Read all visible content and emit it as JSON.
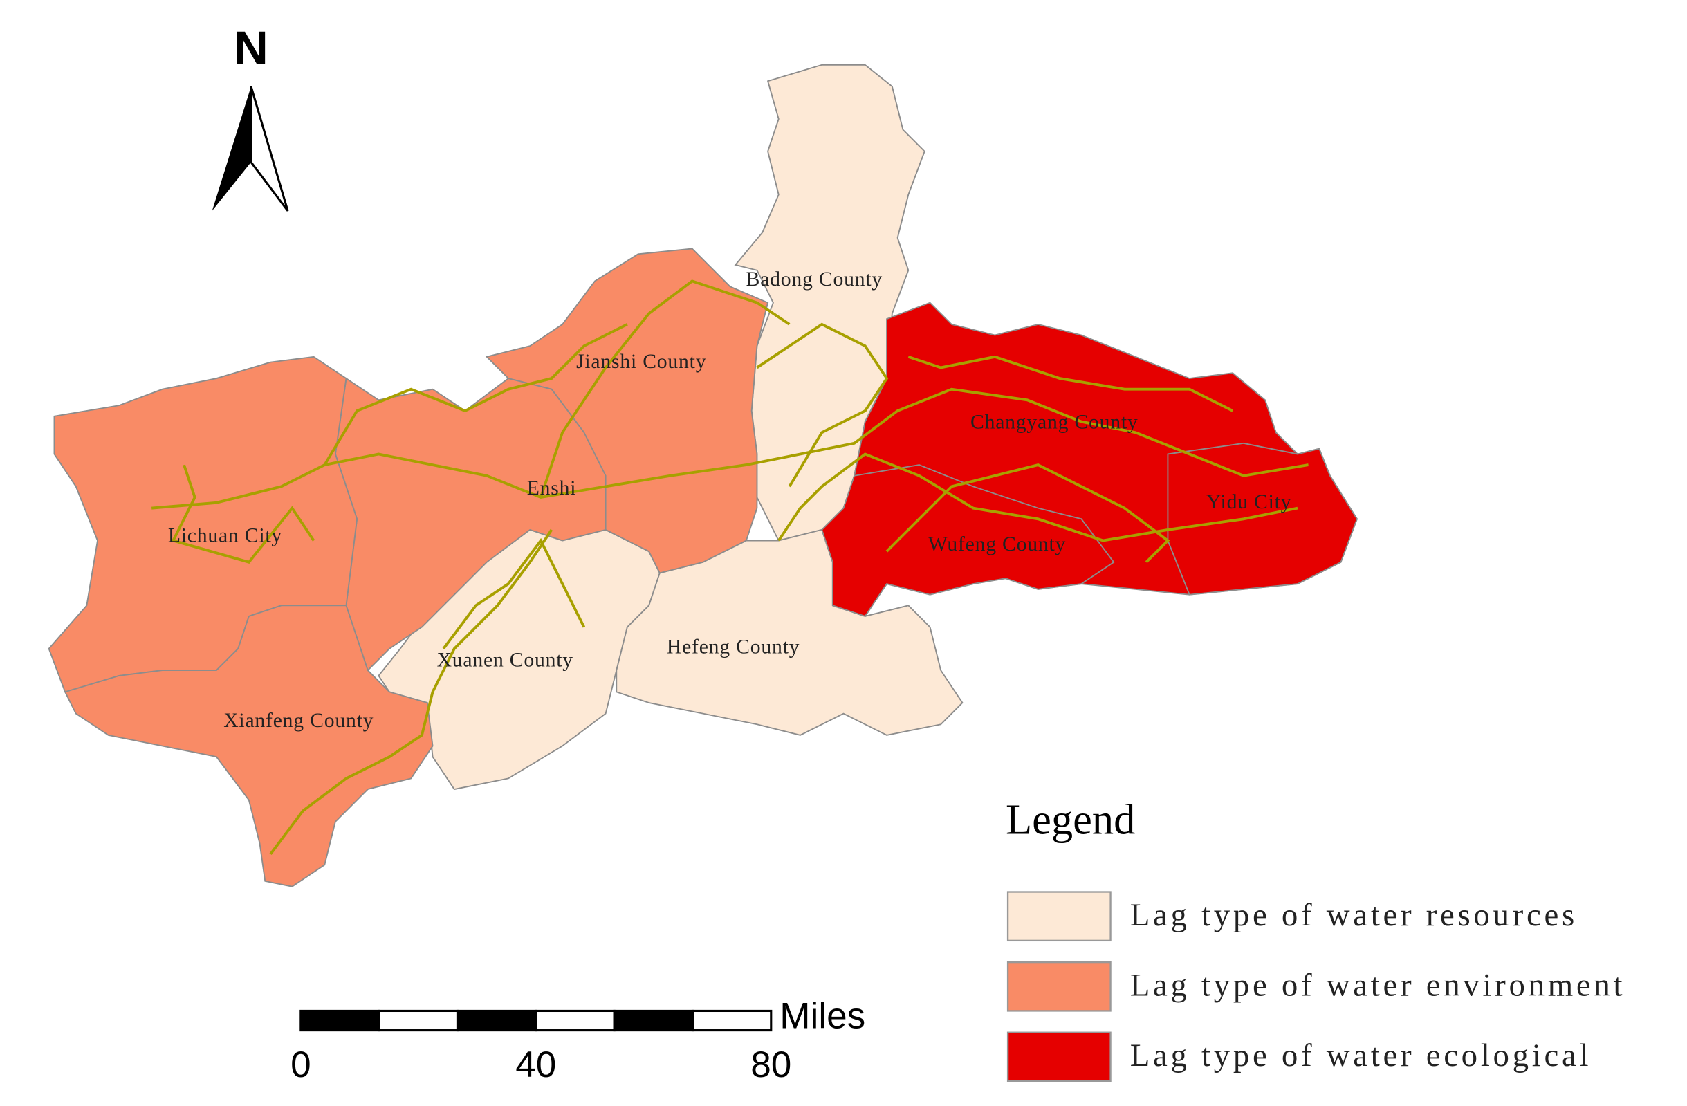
{
  "north": "N",
  "legend": {
    "title": "Legend",
    "items": [
      {
        "label": "Lag type of water resources",
        "color": "#fde9d6",
        "regions": [
          "Badong County",
          "Xuanen County",
          "Hefeng County"
        ]
      },
      {
        "label": "Lag type of water environment",
        "color": "#f98b66",
        "regions": [
          "Jianshi County",
          "Enshi",
          "Lichuan City",
          "Xianfeng County"
        ]
      },
      {
        "label": "Lag type of water ecological",
        "color": "#e50000",
        "regions": [
          "Changyang County",
          "Wufeng County",
          "Yidu City"
        ]
      }
    ]
  },
  "scale_bar": {
    "unit": "Miles",
    "ticks": [
      0,
      40,
      80
    ]
  }
}
